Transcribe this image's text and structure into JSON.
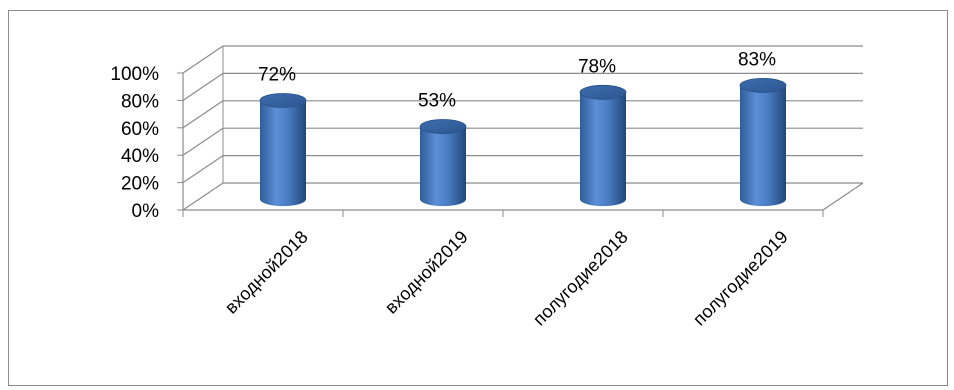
{
  "chart_data": {
    "type": "bar",
    "style": "3d-cylinder",
    "categories": [
      "входной2018",
      "входной2019",
      "полугодие2018",
      "полугодие2019"
    ],
    "values": [
      72,
      53,
      78,
      83
    ],
    "value_labels": [
      "72%",
      "53%",
      "78%",
      "83%"
    ],
    "ytick_labels": [
      "0%",
      "20%",
      "40%",
      "60%",
      "80%",
      "100%"
    ],
    "ylim": [
      0,
      100
    ],
    "grid": true,
    "bar_color": "#4a7ec4"
  }
}
